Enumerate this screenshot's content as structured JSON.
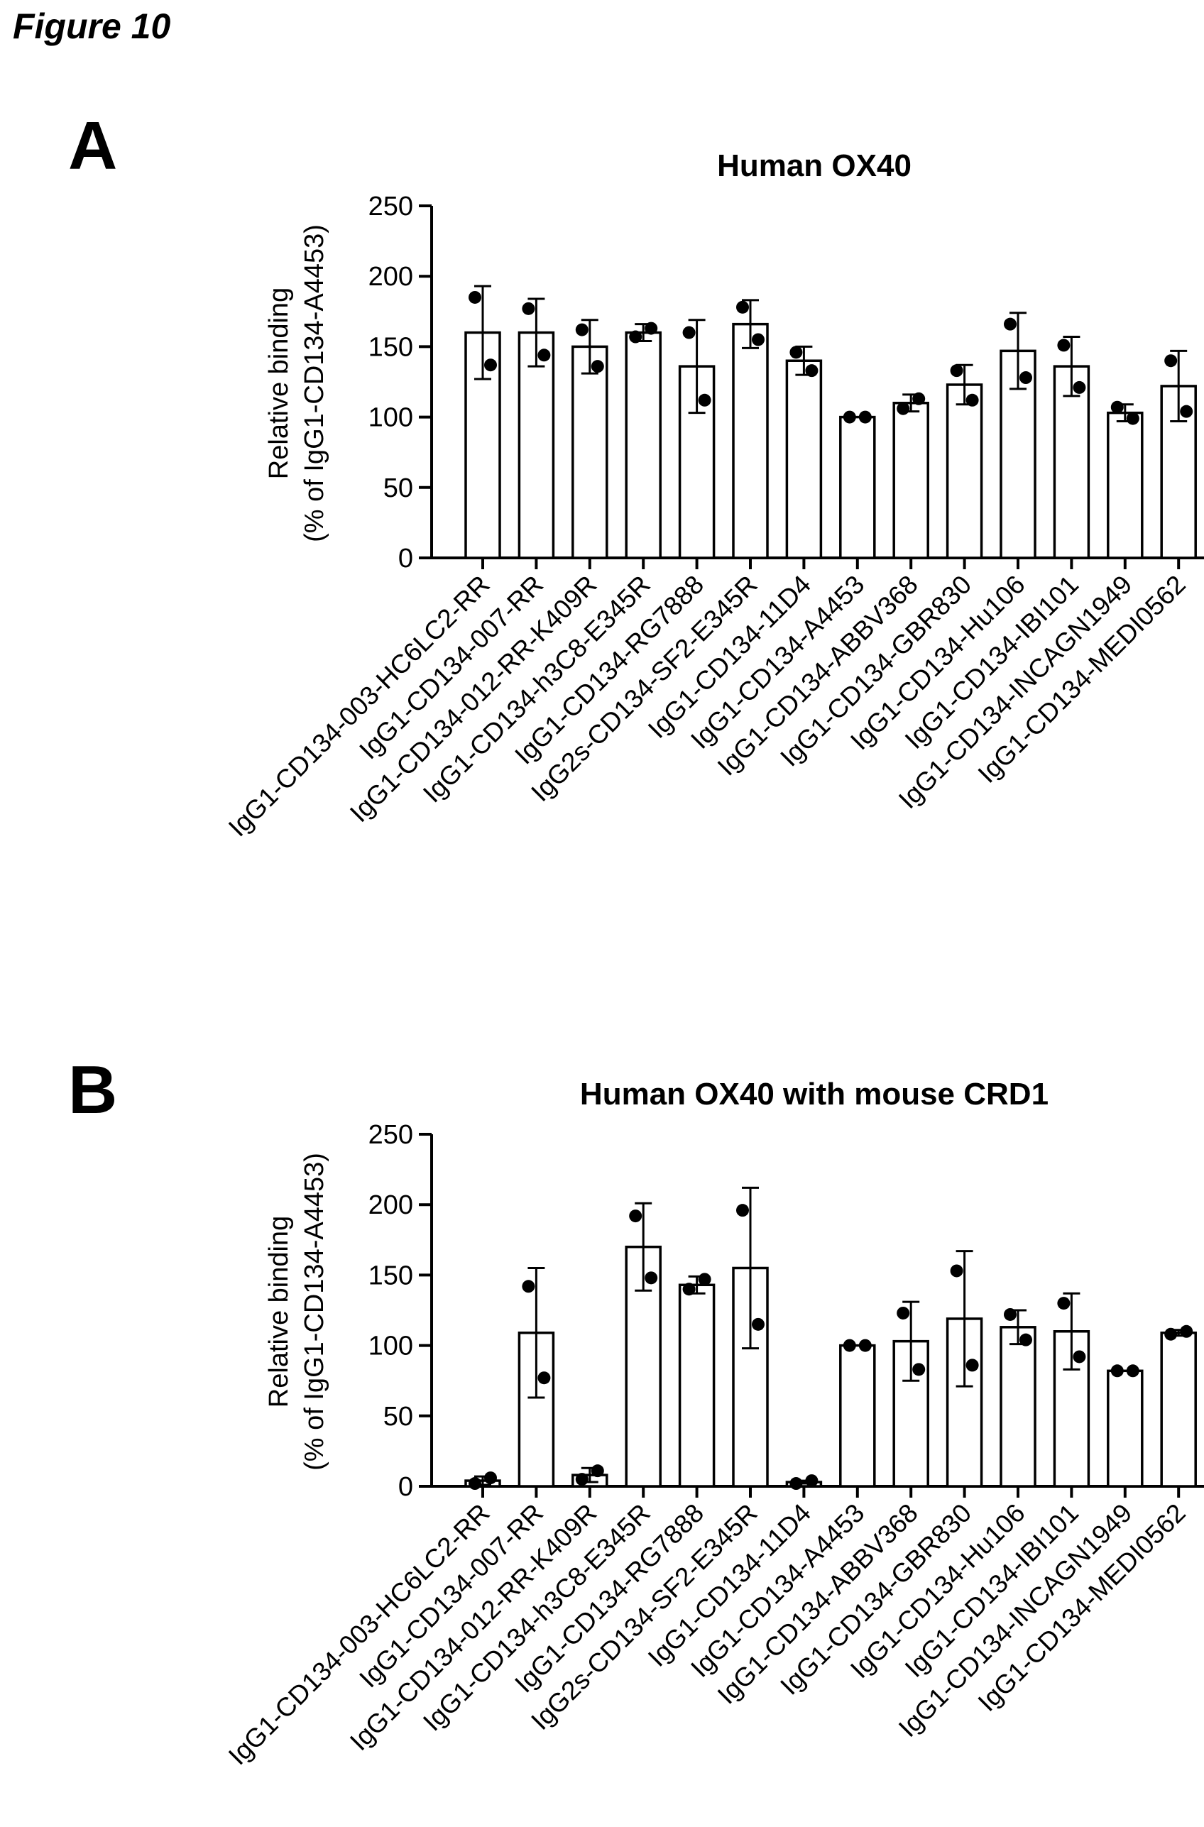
{
  "figure_label": "Figure 10",
  "chart_data": [
    {
      "panel": "A",
      "type": "bar",
      "title": "Human OX40",
      "ylabel_line1": "Relative binding",
      "ylabel_line2": "(% of IgG1-CD134-A4453)",
      "xlabel": "",
      "ylim": [
        0,
        250
      ],
      "yticks": [
        0,
        50,
        100,
        150,
        200,
        250
      ],
      "grid": false,
      "categories": [
        "IgG1-CD134-003-HC6LC2-RR",
        "IgG1-CD134-007-RR",
        "IgG1-CD134-012-RR-K409R",
        "IgG1-CD134-h3C8-E345R",
        "IgG1-CD134-RG7888",
        "IgG2s-CD134-SF2-E345R",
        "IgG1-CD134-11D4",
        "IgG1-CD134-A4453",
        "IgG1-CD134-ABBV368",
        "IgG1-CD134-GBR830",
        "IgG1-CD134-Hu106",
        "IgG1-CD134-IBI101",
        "IgG1-CD134-INCAGN1949",
        "IgG1-CD134-MEDI0562"
      ],
      "values": [
        160,
        160,
        150,
        160,
        136,
        166,
        140,
        100,
        110,
        123,
        147,
        136,
        103,
        122
      ],
      "error": [
        33,
        24,
        19,
        6,
        33,
        17,
        10,
        0,
        6,
        14,
        27,
        21,
        6,
        25
      ],
      "points": [
        [
          185,
          137
        ],
        [
          177,
          144
        ],
        [
          162,
          136
        ],
        [
          157,
          163
        ],
        [
          160,
          112
        ],
        [
          178,
          155
        ],
        [
          146,
          133
        ],
        [
          100,
          100
        ],
        [
          106,
          113
        ],
        [
          133,
          112
        ],
        [
          166,
          128
        ],
        [
          151,
          121
        ],
        [
          107,
          99
        ],
        [
          140,
          104
        ]
      ]
    },
    {
      "panel": "B",
      "type": "bar",
      "title": "Human OX40 with mouse CRD1",
      "ylabel_line1": "Relative binding",
      "ylabel_line2": "(% of IgG1-CD134-A4453)",
      "xlabel": "",
      "ylim": [
        0,
        250
      ],
      "yticks": [
        0,
        50,
        100,
        150,
        200,
        250
      ],
      "grid": false,
      "categories": [
        "IgG1-CD134-003-HC6LC2-RR",
        "IgG1-CD134-007-RR",
        "IgG1-CD134-012-RR-K409R",
        "IgG1-CD134-h3C8-E345R",
        "IgG1-CD134-RG7888",
        "IgG2s-CD134-SF2-E345R",
        "IgG1-CD134-11D4",
        "IgG1-CD134-A4453",
        "IgG1-CD134-ABBV368",
        "IgG1-CD134-GBR830",
        "IgG1-CD134-Hu106",
        "IgG1-CD134-IBI101",
        "IgG1-CD134-INCAGN1949",
        "IgG1-CD134-MEDI0562"
      ],
      "values": [
        4,
        109,
        8,
        170,
        143,
        155,
        3,
        100,
        103,
        119,
        113,
        110,
        82,
        109
      ],
      "error": [
        3,
        46,
        5,
        31,
        6,
        57,
        1,
        0,
        28,
        48,
        12,
        27,
        0,
        2
      ],
      "points": [
        [
          2,
          6
        ],
        [
          142,
          77
        ],
        [
          5,
          11
        ],
        [
          192,
          148
        ],
        [
          140,
          147
        ],
        [
          196,
          115
        ],
        [
          2,
          4
        ],
        [
          100,
          100
        ],
        [
          123,
          83
        ],
        [
          153,
          86
        ],
        [
          122,
          104
        ],
        [
          130,
          92
        ],
        [
          82,
          82
        ],
        [
          108,
          110
        ]
      ]
    }
  ]
}
